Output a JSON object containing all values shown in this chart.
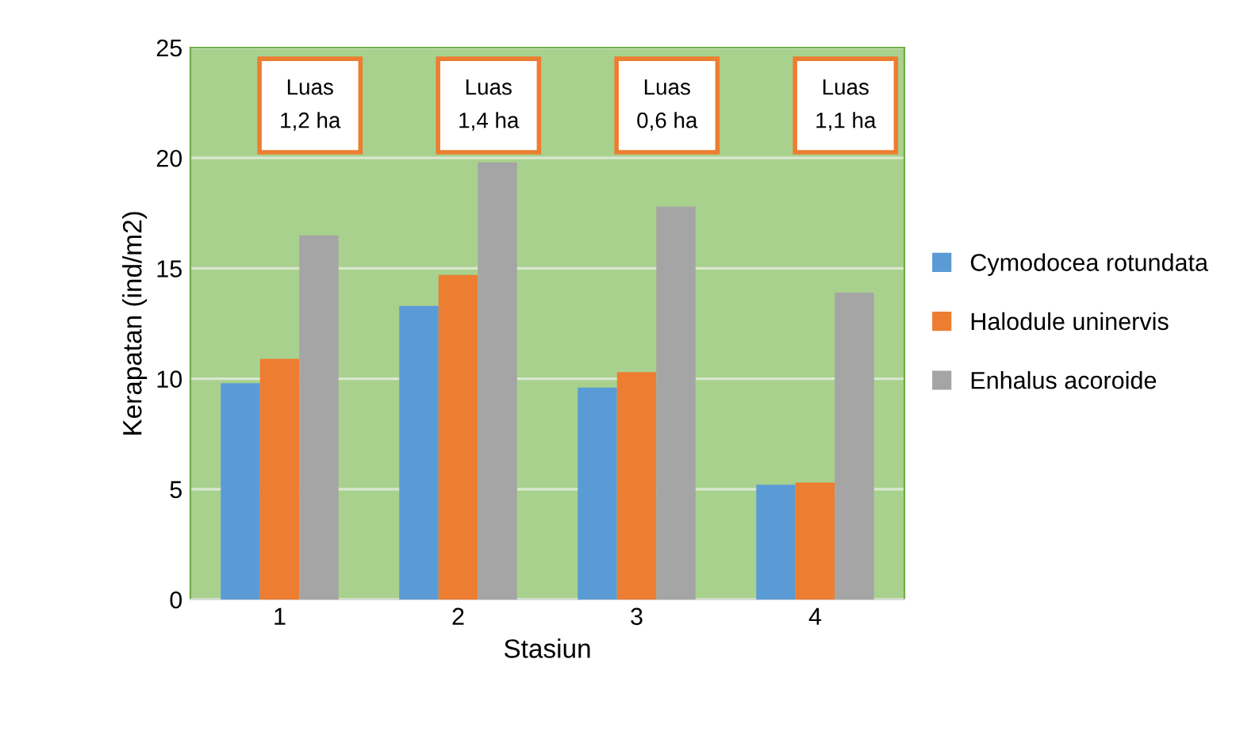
{
  "chart_data": {
    "type": "bar",
    "xlabel": "Stasiun",
    "ylabel": "Kerapatan (ind/m2)",
    "categories": [
      "1",
      "2",
      "3",
      "4"
    ],
    "series": [
      {
        "name": "Cymodocea rotundata",
        "color": "#5b9bd5",
        "values": [
          9.8,
          13.3,
          9.6,
          5.2
        ]
      },
      {
        "name": "Halodule uninervis",
        "color": "#ed7d31",
        "values": [
          10.9,
          14.7,
          10.3,
          5.3
        ]
      },
      {
        "name": "Enhalus acoroide",
        "color": "#a5a5a5",
        "values": [
          16.5,
          19.8,
          17.8,
          13.9
        ]
      }
    ],
    "ylim": [
      0,
      25
    ],
    "yticks": [
      0,
      5,
      10,
      15,
      20,
      25
    ],
    "grid": "y",
    "legend": "right",
    "annotations": [
      "Luas\n1,2 ha",
      "Luas\n1,4 ha",
      "Luas\n0,6 ha",
      "Luas\n1,1 ha"
    ]
  }
}
